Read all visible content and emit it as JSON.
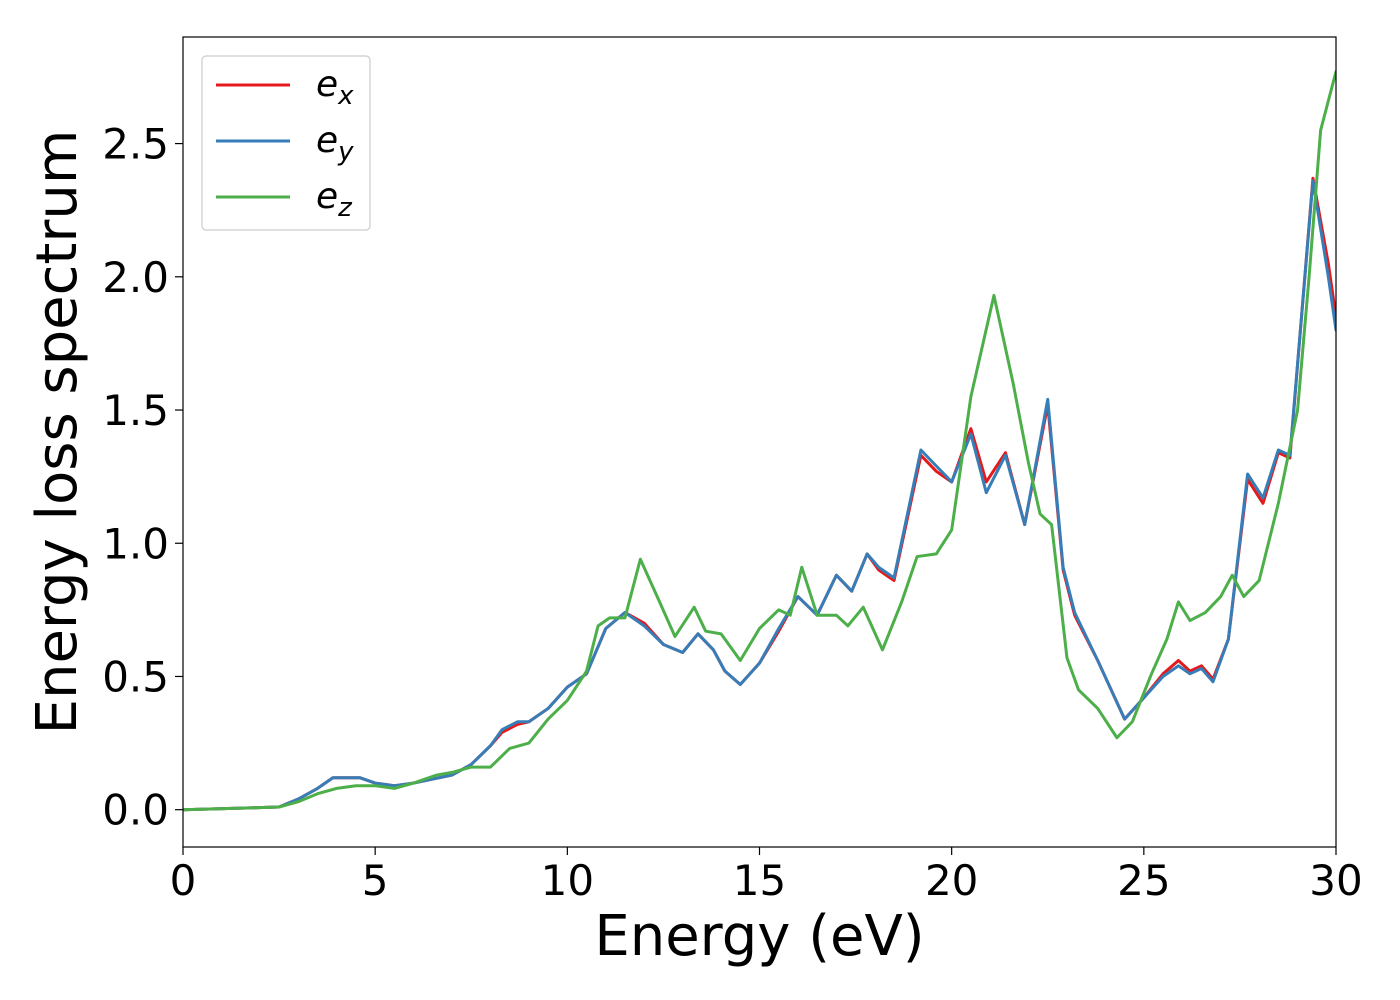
{
  "chart_data": {
    "type": "line",
    "xlabel": "Energy (eV)",
    "ylabel": "Energy loss spectrum",
    "xlim": [
      0,
      30
    ],
    "ylim": [
      -0.14,
      2.9
    ],
    "xticks": [
      "0",
      "5",
      "10",
      "15",
      "20",
      "25",
      "30"
    ],
    "yticks": [
      "0.0",
      "0.5",
      "1.0",
      "1.5",
      "2.0",
      "2.5"
    ],
    "legend_position": "top-left",
    "grid": false,
    "series": [
      {
        "name": "e",
        "subscript": "x",
        "color": "#e41a1c",
        "points": [
          [
            0,
            0
          ],
          [
            2.5,
            0.01
          ],
          [
            3,
            0.04
          ],
          [
            3.5,
            0.08
          ],
          [
            3.9,
            0.12
          ],
          [
            4.2,
            0.12
          ],
          [
            4.6,
            0.12
          ],
          [
            5,
            0.1
          ],
          [
            5.5,
            0.09
          ],
          [
            6,
            0.1
          ],
          [
            7,
            0.13
          ],
          [
            7.5,
            0.17
          ],
          [
            8,
            0.24
          ],
          [
            8.3,
            0.29
          ],
          [
            8.7,
            0.32
          ],
          [
            9,
            0.33
          ],
          [
            9.5,
            0.38
          ],
          [
            10,
            0.46
          ],
          [
            10.5,
            0.51
          ],
          [
            11,
            0.68
          ],
          [
            11.5,
            0.74
          ],
          [
            12,
            0.7
          ],
          [
            12.5,
            0.62
          ],
          [
            13,
            0.59
          ],
          [
            13.4,
            0.66
          ],
          [
            13.8,
            0.6
          ],
          [
            14.1,
            0.52
          ],
          [
            14.5,
            0.47
          ],
          [
            15,
            0.55
          ],
          [
            15.5,
            0.67
          ],
          [
            16,
            0.8
          ],
          [
            16.5,
            0.73
          ],
          [
            17,
            0.88
          ],
          [
            17.4,
            0.82
          ],
          [
            17.8,
            0.96
          ],
          [
            18.1,
            0.9
          ],
          [
            18.5,
            0.86
          ],
          [
            19.2,
            1.33
          ],
          [
            19.6,
            1.27
          ],
          [
            20,
            1.23
          ],
          [
            20.5,
            1.43
          ],
          [
            20.9,
            1.23
          ],
          [
            21.4,
            1.34
          ],
          [
            21.9,
            1.07
          ],
          [
            22.5,
            1.52
          ],
          [
            22.9,
            0.9
          ],
          [
            23.2,
            0.73
          ],
          [
            23.8,
            0.56
          ],
          [
            24.5,
            0.34
          ],
          [
            25,
            0.42
          ],
          [
            25.5,
            0.51
          ],
          [
            25.9,
            0.56
          ],
          [
            26.2,
            0.52
          ],
          [
            26.5,
            0.54
          ],
          [
            26.8,
            0.49
          ],
          [
            27.2,
            0.64
          ],
          [
            27.7,
            1.24
          ],
          [
            28.1,
            1.15
          ],
          [
            28.5,
            1.34
          ],
          [
            28.8,
            1.32
          ],
          [
            29.4,
            2.37
          ],
          [
            29.8,
            2.05
          ],
          [
            30,
            1.85
          ]
        ]
      },
      {
        "name": "e",
        "subscript": "y",
        "color": "#377eb8",
        "points": [
          [
            0,
            0
          ],
          [
            2.5,
            0.01
          ],
          [
            3,
            0.04
          ],
          [
            3.5,
            0.08
          ],
          [
            3.9,
            0.12
          ],
          [
            4.2,
            0.12
          ],
          [
            4.6,
            0.12
          ],
          [
            5,
            0.1
          ],
          [
            5.5,
            0.09
          ],
          [
            6,
            0.1
          ],
          [
            7,
            0.13
          ],
          [
            7.5,
            0.17
          ],
          [
            8,
            0.24
          ],
          [
            8.3,
            0.3
          ],
          [
            8.7,
            0.33
          ],
          [
            9,
            0.33
          ],
          [
            9.5,
            0.38
          ],
          [
            10,
            0.46
          ],
          [
            10.5,
            0.51
          ],
          [
            11,
            0.68
          ],
          [
            11.5,
            0.74
          ],
          [
            12,
            0.69
          ],
          [
            12.5,
            0.62
          ],
          [
            13,
            0.59
          ],
          [
            13.4,
            0.66
          ],
          [
            13.8,
            0.6
          ],
          [
            14.1,
            0.52
          ],
          [
            14.5,
            0.47
          ],
          [
            15,
            0.55
          ],
          [
            15.5,
            0.68
          ],
          [
            16,
            0.8
          ],
          [
            16.5,
            0.73
          ],
          [
            17,
            0.88
          ],
          [
            17.4,
            0.82
          ],
          [
            17.8,
            0.96
          ],
          [
            18.1,
            0.91
          ],
          [
            18.5,
            0.87
          ],
          [
            19.2,
            1.35
          ],
          [
            19.6,
            1.29
          ],
          [
            20,
            1.23
          ],
          [
            20.5,
            1.41
          ],
          [
            20.9,
            1.19
          ],
          [
            21.4,
            1.33
          ],
          [
            21.9,
            1.07
          ],
          [
            22.5,
            1.54
          ],
          [
            22.9,
            0.91
          ],
          [
            23.2,
            0.74
          ],
          [
            23.8,
            0.56
          ],
          [
            24.5,
            0.34
          ],
          [
            25,
            0.42
          ],
          [
            25.5,
            0.5
          ],
          [
            25.9,
            0.54
          ],
          [
            26.2,
            0.51
          ],
          [
            26.5,
            0.53
          ],
          [
            26.8,
            0.48
          ],
          [
            27.2,
            0.64
          ],
          [
            27.7,
            1.26
          ],
          [
            28.1,
            1.17
          ],
          [
            28.5,
            1.35
          ],
          [
            28.8,
            1.33
          ],
          [
            29.4,
            2.36
          ],
          [
            29.8,
            2.0
          ],
          [
            30,
            1.8
          ]
        ]
      },
      {
        "name": "e",
        "subscript": "z",
        "color": "#4daf4a",
        "points": [
          [
            0,
            0
          ],
          [
            2.5,
            0.01
          ],
          [
            3,
            0.03
          ],
          [
            3.5,
            0.06
          ],
          [
            4,
            0.08
          ],
          [
            4.5,
            0.09
          ],
          [
            5,
            0.09
          ],
          [
            5.5,
            0.08
          ],
          [
            6,
            0.1
          ],
          [
            6.6,
            0.13
          ],
          [
            7,
            0.14
          ],
          [
            7.5,
            0.16
          ],
          [
            8,
            0.16
          ],
          [
            8.5,
            0.23
          ],
          [
            9,
            0.25
          ],
          [
            9.5,
            0.34
          ],
          [
            10,
            0.41
          ],
          [
            10.5,
            0.52
          ],
          [
            10.8,
            0.69
          ],
          [
            11.1,
            0.72
          ],
          [
            11.5,
            0.72
          ],
          [
            11.9,
            0.94
          ],
          [
            12.4,
            0.78
          ],
          [
            12.8,
            0.65
          ],
          [
            13.3,
            0.76
          ],
          [
            13.6,
            0.67
          ],
          [
            14,
            0.66
          ],
          [
            14.5,
            0.56
          ],
          [
            15,
            0.68
          ],
          [
            15.5,
            0.75
          ],
          [
            15.8,
            0.73
          ],
          [
            16.1,
            0.91
          ],
          [
            16.5,
            0.73
          ],
          [
            17,
            0.73
          ],
          [
            17.3,
            0.69
          ],
          [
            17.7,
            0.76
          ],
          [
            18.2,
            0.6
          ],
          [
            18.7,
            0.78
          ],
          [
            19.1,
            0.95
          ],
          [
            19.6,
            0.96
          ],
          [
            20,
            1.05
          ],
          [
            20.5,
            1.55
          ],
          [
            21.1,
            1.93
          ],
          [
            21.6,
            1.6
          ],
          [
            22,
            1.3
          ],
          [
            22.3,
            1.11
          ],
          [
            22.6,
            1.07
          ],
          [
            23,
            0.57
          ],
          [
            23.3,
            0.45
          ],
          [
            23.8,
            0.38
          ],
          [
            24.3,
            0.27
          ],
          [
            24.7,
            0.33
          ],
          [
            25.2,
            0.51
          ],
          [
            25.6,
            0.64
          ],
          [
            25.9,
            0.78
          ],
          [
            26.2,
            0.71
          ],
          [
            26.6,
            0.74
          ],
          [
            27,
            0.8
          ],
          [
            27.3,
            0.88
          ],
          [
            27.6,
            0.8
          ],
          [
            28,
            0.86
          ],
          [
            28.5,
            1.15
          ],
          [
            29,
            1.5
          ],
          [
            29.3,
            2.0
          ],
          [
            29.6,
            2.55
          ],
          [
            30,
            2.77
          ]
        ]
      }
    ]
  }
}
